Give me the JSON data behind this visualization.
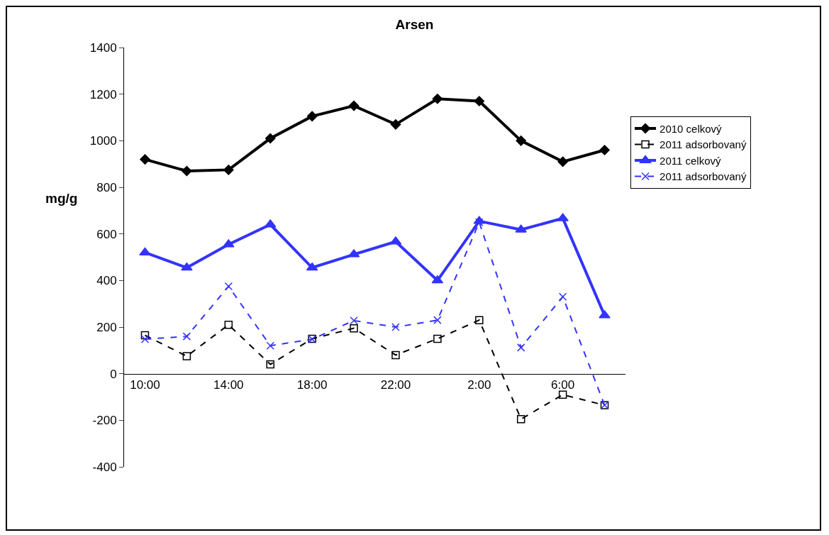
{
  "chart_data": {
    "type": "line",
    "title": "Arsen",
    "ylabel": "mg/g",
    "categories": [
      "10:00",
      null,
      "14:00",
      null,
      "18:00",
      null,
      "22:00",
      null,
      "2:00",
      null,
      "6:00",
      null
    ],
    "series": [
      {
        "name": "2010 celkový",
        "color": "#000000",
        "marker": "diamond",
        "line_style": "solid",
        "values": [
          920,
          870,
          875,
          1010,
          1105,
          1150,
          1070,
          1180,
          1170,
          1000,
          910,
          960
        ]
      },
      {
        "name": "2011 adsorbovaný",
        "color": "#000000",
        "marker": "square",
        "line_style": "dashed",
        "values": [
          165,
          75,
          210,
          40,
          150,
          195,
          80,
          150,
          230,
          -195,
          -90,
          -135
        ]
      },
      {
        "name": "2011 celkový",
        "color": "#3333ff",
        "marker": "triangle",
        "line_style": "solid",
        "values": [
          520,
          455,
          555,
          640,
          455,
          512,
          567,
          400,
          655,
          618,
          667,
          250
        ]
      },
      {
        "name": "2011 adsorbovaný",
        "color": "#3333ff",
        "marker": "cross",
        "line_style": "dashed",
        "values": [
          148,
          160,
          375,
          120,
          148,
          228,
          200,
          230,
          650,
          112,
          330,
          -135
        ]
      }
    ],
    "ylim": [
      -400,
      1400
    ],
    "yticks": [
      -400,
      -200,
      0,
      200,
      400,
      600,
      800,
      1000,
      1200,
      1400
    ],
    "grid": false,
    "legend": "right"
  }
}
